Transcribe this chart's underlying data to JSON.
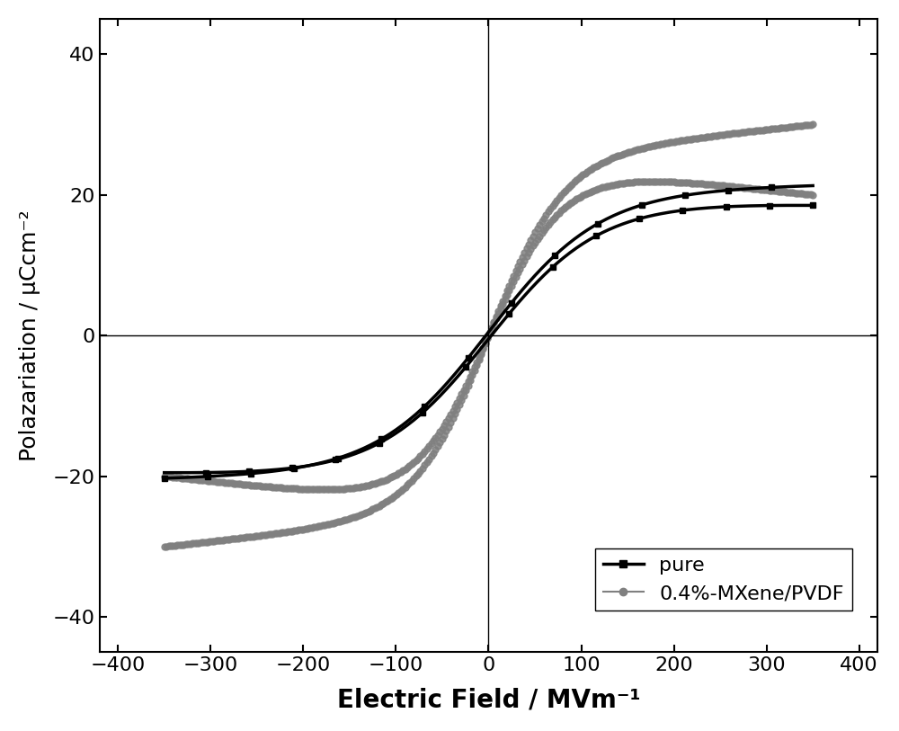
{
  "title": "",
  "xlabel": "Electric Field / MVm⁻¹",
  "ylabel": "Polazariation / μCcm⁻²",
  "xlim": [
    -420,
    420
  ],
  "ylim": [
    -45,
    45
  ],
  "xticks": [
    -400,
    -300,
    -200,
    -100,
    0,
    100,
    200,
    300,
    400
  ],
  "yticks": [
    -40,
    -20,
    0,
    20,
    40
  ],
  "background_color": "#ffffff",
  "pure_color": "#000000",
  "mxene_color": "#808080",
  "legend_labels": [
    "pure",
    "0.4%-MXene/PVDF"
  ]
}
